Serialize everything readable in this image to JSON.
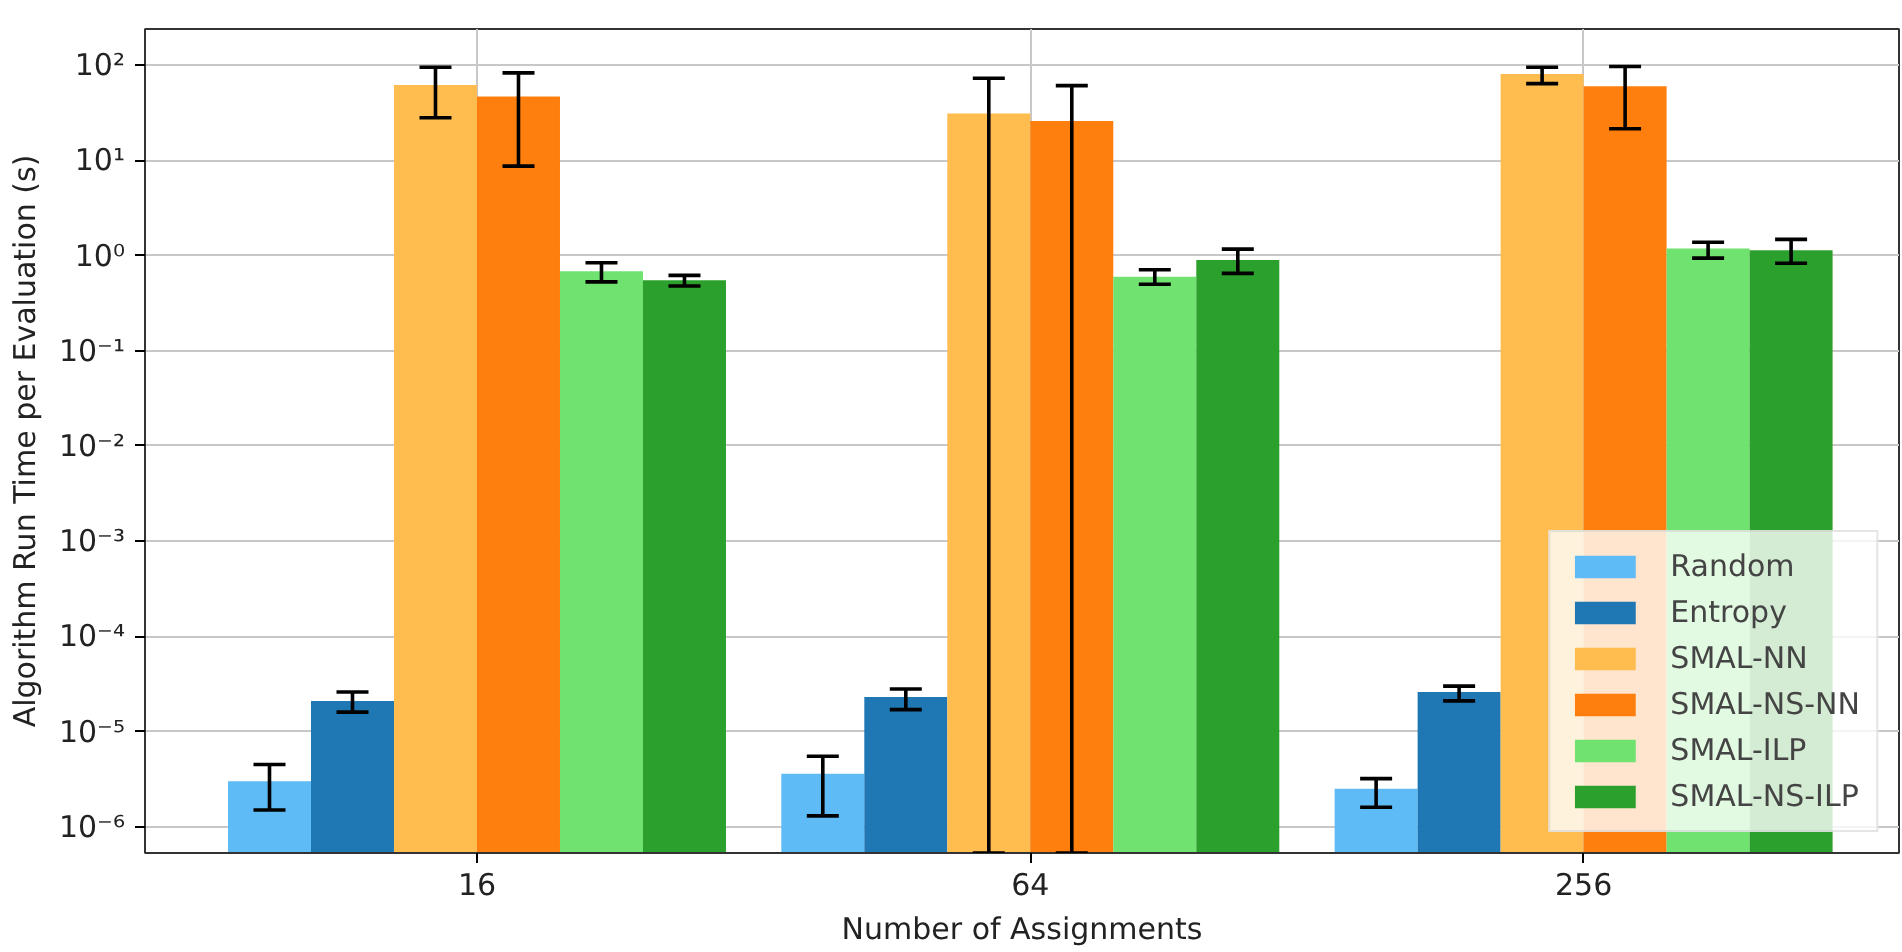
{
  "chart_data": {
    "type": "bar",
    "xlabel": "Number of Assignments",
    "ylabel": "Algorithm Run Time per Evaluation (s)",
    "categories": [
      "16",
      "64",
      "256"
    ],
    "log": "y",
    "ylim": [
      5.3e-07,
      240
    ],
    "yticks": [
      {
        "value": 1e-06,
        "label": "10⁻⁶"
      },
      {
        "value": 1e-05,
        "label": "10⁻⁵"
      },
      {
        "value": 0.0001,
        "label": "10⁻⁴"
      },
      {
        "value": 0.001,
        "label": "10⁻³"
      },
      {
        "value": 0.01,
        "label": "10⁻²"
      },
      {
        "value": 0.1,
        "label": "10⁻¹"
      },
      {
        "value": 1,
        "label": "10⁰"
      },
      {
        "value": 10,
        "label": "10¹"
      },
      {
        "value": 100,
        "label": "10²"
      }
    ],
    "grid": true,
    "legend": "bottom right",
    "series": [
      {
        "name": "Random",
        "color": "#5fbbf5",
        "values": [
          3e-06,
          3.6e-06,
          2.5e-06
        ],
        "errors": [
          [
            1.5e-06,
            4.5e-06
          ],
          [
            1.3e-06,
            5.5e-06
          ],
          [
            1.6e-06,
            3.2e-06
          ]
        ]
      },
      {
        "name": "Entropy",
        "color": "#1f77b4",
        "values": [
          2.1e-05,
          2.3e-05,
          2.6e-05
        ],
        "errors": [
          [
            1.6e-05,
            2.6e-05
          ],
          [
            1.7e-05,
            2.8e-05
          ],
          [
            2.1e-05,
            3e-05
          ]
        ]
      },
      {
        "name": "SMAL-NN",
        "color": "#ffbc4f",
        "values": [
          62,
          31,
          81
        ],
        "errors": [
          [
            28,
            95
          ],
          [
            5.3e-07,
            73
          ],
          [
            64,
            95
          ]
        ]
      },
      {
        "name": "SMAL-NS-NN",
        "color": "#ff7f0e",
        "values": [
          47,
          26,
          60
        ],
        "errors": [
          [
            8.7,
            83
          ],
          [
            5.3e-07,
            61
          ],
          [
            21.5,
            97
          ]
        ]
      },
      {
        "name": "SMAL-ILP",
        "color": "#6fe26f",
        "values": [
          0.685,
          0.6,
          1.19
        ],
        "errors": [
          [
            0.53,
            0.84
          ],
          [
            0.5,
            0.71
          ],
          [
            0.94,
            1.38
          ]
        ]
      },
      {
        "name": "SMAL-NS-ILP",
        "color": "#2ca02c",
        "values": [
          0.55,
          0.9,
          1.14
        ],
        "errors": [
          [
            0.48,
            0.62
          ],
          [
            0.65,
            1.17
          ],
          [
            0.83,
            1.48
          ]
        ]
      }
    ]
  }
}
